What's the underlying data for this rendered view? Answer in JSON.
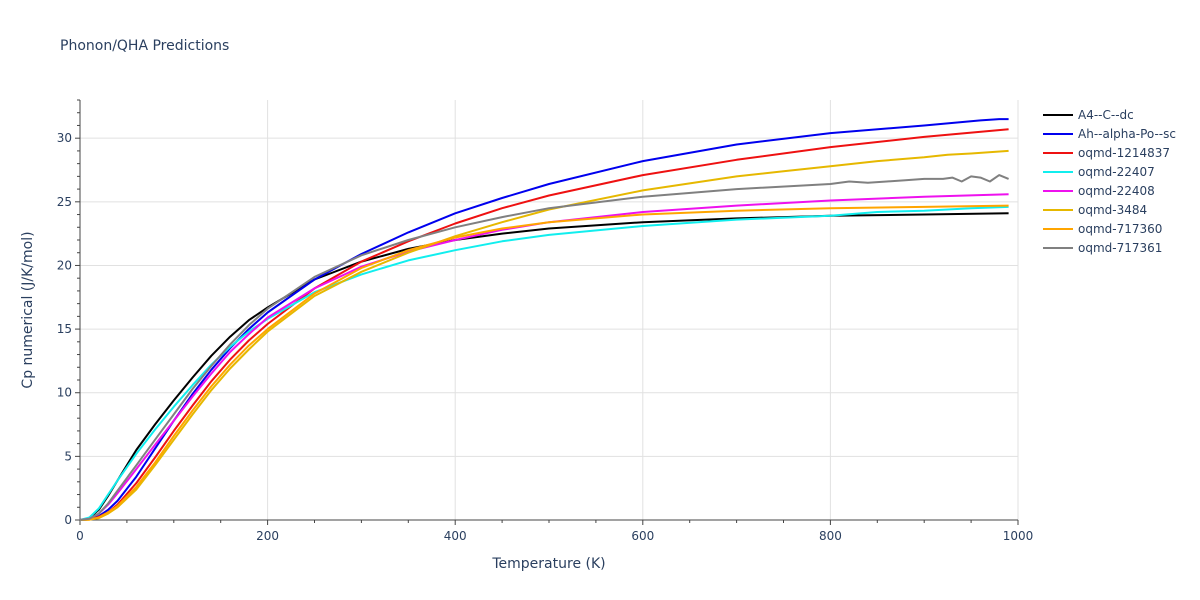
{
  "chart_data": {
    "type": "line",
    "title": "Phonon/QHA Predictions",
    "xlabel": "Temperature (K)",
    "ylabel": "Cp numerical (J/K/mol)",
    "xlim": [
      0,
      1000
    ],
    "ylim": [
      0,
      33
    ],
    "xticks": [
      0,
      200,
      400,
      600,
      800,
      1000
    ],
    "yticks": [
      0,
      5,
      10,
      15,
      20,
      25,
      30
    ],
    "grid": true,
    "legend_position": "right",
    "series": [
      {
        "name": "A4--C--dc",
        "color": "#000000",
        "x": [
          0,
          10,
          20,
          30,
          40,
          60,
          80,
          100,
          120,
          140,
          160,
          180,
          200,
          250,
          300,
          350,
          400,
          450,
          500,
          600,
          700,
          800,
          900,
          990
        ],
        "y": [
          0,
          0.15,
          0.8,
          1.9,
          3.1,
          5.5,
          7.5,
          9.4,
          11.2,
          12.9,
          14.4,
          15.7,
          16.7,
          18.9,
          20.3,
          21.3,
          22.0,
          22.5,
          22.9,
          23.4,
          23.7,
          23.9,
          24.0,
          24.1
        ]
      },
      {
        "name": "Ah--alpha-Po--sc",
        "color": "#0000ee",
        "x": [
          0,
          10,
          20,
          30,
          40,
          60,
          80,
          100,
          120,
          140,
          160,
          180,
          200,
          250,
          300,
          350,
          400,
          450,
          500,
          600,
          700,
          800,
          900,
          960,
          980,
          990
        ],
        "y": [
          0,
          0.05,
          0.3,
          0.8,
          1.5,
          3.4,
          5.6,
          7.8,
          9.9,
          11.8,
          13.5,
          15.0,
          16.3,
          18.9,
          20.9,
          22.6,
          24.1,
          25.3,
          26.4,
          28.2,
          29.5,
          30.4,
          31.0,
          31.4,
          31.5,
          31.5
        ]
      },
      {
        "name": "oqmd-1214837",
        "color": "#ee1111",
        "x": [
          0,
          10,
          20,
          30,
          40,
          60,
          80,
          100,
          120,
          140,
          160,
          180,
          200,
          250,
          300,
          350,
          400,
          450,
          500,
          600,
          700,
          800,
          900,
          990
        ],
        "y": [
          0,
          0.05,
          0.25,
          0.6,
          1.2,
          2.9,
          4.9,
          7.0,
          9.0,
          10.9,
          12.6,
          14.1,
          15.4,
          18.2,
          20.3,
          21.9,
          23.3,
          24.5,
          25.5,
          27.1,
          28.3,
          29.3,
          30.1,
          30.7
        ]
      },
      {
        "name": "oqmd-22407",
        "color": "#11eeee",
        "x": [
          0,
          10,
          20,
          30,
          40,
          60,
          80,
          100,
          120,
          140,
          160,
          180,
          200,
          250,
          300,
          350,
          400,
          450,
          500,
          600,
          700,
          800,
          850,
          900,
          950,
          990
        ],
        "y": [
          0,
          0.2,
          0.9,
          2.0,
          3.1,
          5.2,
          7.1,
          8.9,
          10.6,
          12.2,
          13.6,
          14.8,
          15.8,
          17.9,
          19.3,
          20.4,
          21.2,
          21.9,
          22.4,
          23.1,
          23.6,
          23.9,
          24.2,
          24.3,
          24.5,
          24.6
        ]
      },
      {
        "name": "oqmd-22408",
        "color": "#ee11ee",
        "x": [
          0,
          10,
          20,
          30,
          40,
          60,
          80,
          100,
          120,
          140,
          160,
          180,
          200,
          250,
          300,
          350,
          400,
          450,
          500,
          600,
          700,
          800,
          900,
          990
        ],
        "y": [
          0,
          0.1,
          0.5,
          1.2,
          2.1,
          4.0,
          5.9,
          7.8,
          9.7,
          11.5,
          13.2,
          14.6,
          15.9,
          18.2,
          19.9,
          21.1,
          22.0,
          22.8,
          23.4,
          24.2,
          24.7,
          25.1,
          25.4,
          25.6
        ]
      },
      {
        "name": "oqmd-3484",
        "color": "#e6b800",
        "x": [
          0,
          10,
          20,
          30,
          40,
          60,
          80,
          100,
          120,
          140,
          160,
          180,
          200,
          250,
          300,
          350,
          400,
          450,
          500,
          600,
          700,
          750,
          800,
          850,
          900,
          925,
          950,
          990
        ],
        "y": [
          0,
          0.02,
          0.15,
          0.5,
          1.0,
          2.4,
          4.3,
          6.3,
          8.3,
          10.2,
          11.9,
          13.4,
          14.8,
          17.6,
          19.5,
          21.0,
          22.3,
          23.4,
          24.4,
          25.9,
          27.0,
          27.4,
          27.8,
          28.2,
          28.5,
          28.7,
          28.8,
          29.0
        ]
      },
      {
        "name": "oqmd-717360",
        "color": "#ffa500",
        "x": [
          0,
          10,
          20,
          30,
          40,
          60,
          80,
          100,
          120,
          140,
          160,
          180,
          200,
          250,
          300,
          350,
          400,
          450,
          500,
          600,
          700,
          800,
          900,
          990
        ],
        "y": [
          0,
          0.03,
          0.2,
          0.6,
          1.1,
          2.6,
          4.5,
          6.6,
          8.6,
          10.5,
          12.2,
          13.7,
          15.0,
          17.8,
          19.8,
          21.2,
          22.2,
          22.9,
          23.4,
          24.0,
          24.3,
          24.5,
          24.6,
          24.7
        ]
      },
      {
        "name": "oqmd-717361",
        "color": "#808080",
        "x": [
          0,
          10,
          20,
          30,
          40,
          60,
          80,
          100,
          120,
          140,
          160,
          180,
          200,
          250,
          300,
          350,
          400,
          450,
          500,
          600,
          700,
          800,
          820,
          840,
          860,
          880,
          900,
          920,
          930,
          940,
          950,
          960,
          970,
          980,
          990
        ],
        "y": [
          0,
          0.1,
          0.5,
          1.3,
          2.3,
          4.3,
          6.3,
          8.3,
          10.3,
          12.1,
          13.8,
          15.3,
          16.6,
          19.1,
          20.8,
          22.0,
          23.0,
          23.8,
          24.5,
          25.4,
          26.0,
          26.4,
          26.6,
          26.5,
          26.6,
          26.7,
          26.8,
          26.8,
          26.9,
          26.6,
          27.0,
          26.9,
          26.6,
          27.1,
          26.8
        ]
      }
    ]
  }
}
